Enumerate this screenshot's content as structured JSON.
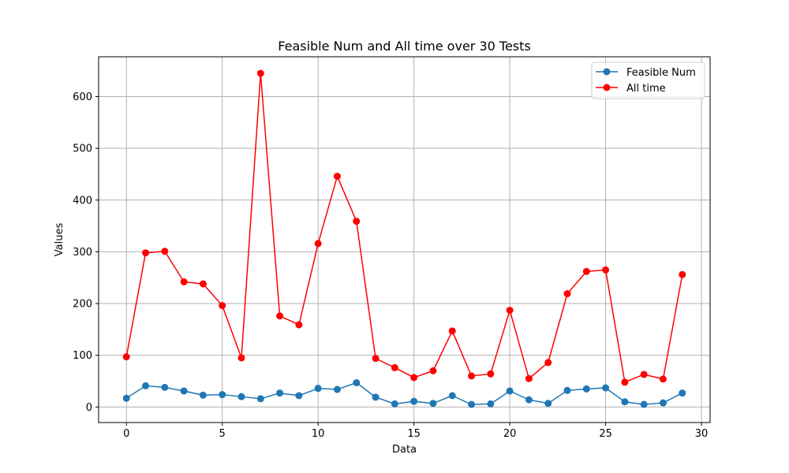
{
  "chart_data": {
    "type": "line",
    "title": "Feasible Num and All time over 30 Tests",
    "xlabel": "Data",
    "ylabel": "Values",
    "xlim": [
      -1.45,
      30.45
    ],
    "ylim": [
      -30,
      677
    ],
    "xticks": [
      0,
      5,
      10,
      15,
      20,
      25,
      30
    ],
    "yticks": [
      0,
      100,
      200,
      300,
      400,
      500,
      600
    ],
    "grid": true,
    "legend_position": "top-right",
    "x": [
      0,
      1,
      2,
      3,
      4,
      5,
      6,
      7,
      8,
      9,
      10,
      11,
      12,
      13,
      14,
      15,
      16,
      17,
      18,
      19,
      20,
      21,
      22,
      23,
      24,
      25,
      26,
      27,
      28,
      29
    ],
    "series": [
      {
        "name": "Feasible Num",
        "color": "#1f77b4",
        "values": [
          17,
          41,
          38,
          31,
          23,
          24,
          20,
          16,
          27,
          22,
          36,
          34,
          47,
          19,
          6,
          11,
          7,
          22,
          5,
          6,
          31,
          14,
          7,
          32,
          35,
          37,
          10,
          5,
          8,
          27
        ]
      },
      {
        "name": "All time",
        "color": "#ff0000",
        "values": [
          97,
          298,
          301,
          242,
          238,
          196,
          95,
          645,
          176,
          159,
          316,
          446,
          359,
          94,
          76,
          57,
          70,
          147,
          60,
          64,
          187,
          55,
          86,
          219,
          262,
          265,
          48,
          63,
          54,
          256
        ]
      }
    ]
  }
}
